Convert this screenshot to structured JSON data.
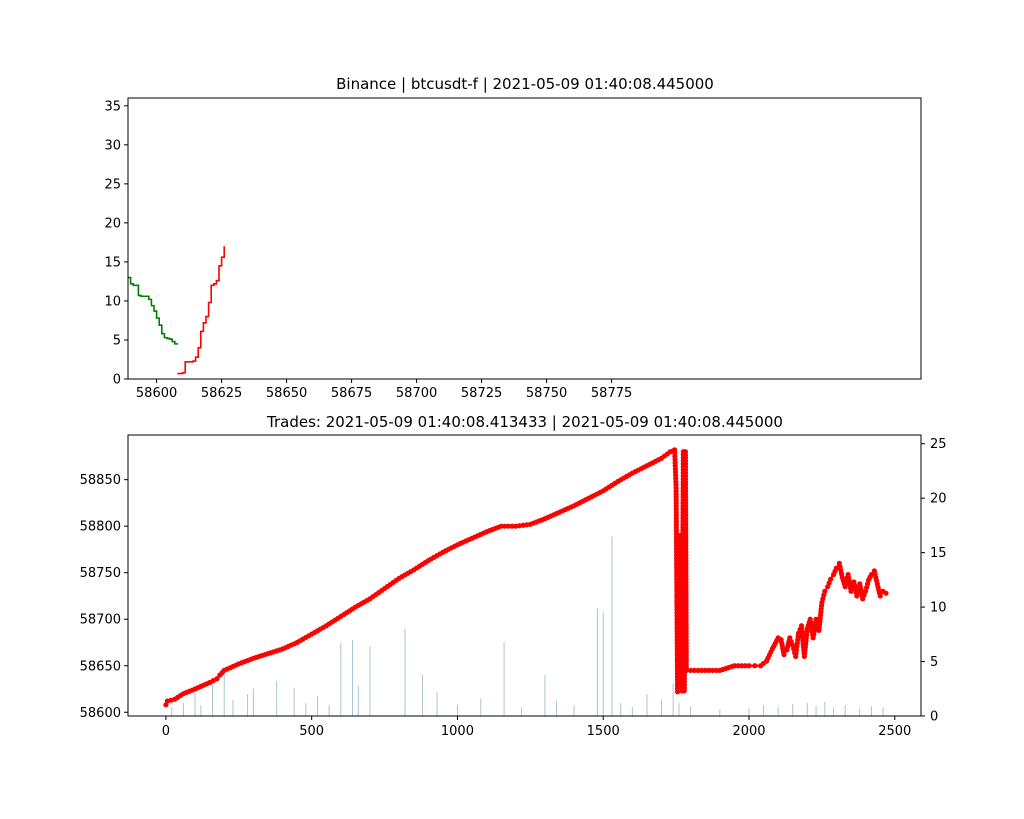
{
  "chart_data": [
    {
      "type": "line",
      "title": "Binance | btcusdt-f | 2021-05-09 01:40:08.445000",
      "xlim": [
        58589,
        58894
      ],
      "ylim": [
        0,
        36
      ],
      "xticks": [
        58600,
        58625,
        58650,
        58675,
        58700,
        58725,
        58750,
        58775
      ],
      "yticks": [
        0,
        5,
        10,
        15,
        20,
        25,
        30,
        35
      ],
      "grid": false,
      "series": [
        {
          "color": "#008000",
          "step": true,
          "x": [
            58589,
            58590,
            58591,
            58593,
            58594,
            58597,
            58598,
            58599,
            58600,
            58601,
            58602,
            58603,
            58604,
            58605,
            58606,
            58607,
            58608
          ],
          "y": [
            13.0,
            12.2,
            12.0,
            10.7,
            10.6,
            10.2,
            9.4,
            8.7,
            7.8,
            6.9,
            5.8,
            5.3,
            5.2,
            5.1,
            4.8,
            4.5,
            4.4
          ]
        },
        {
          "color": "#ff0000",
          "step": true,
          "x": [
            58608,
            58610,
            58611,
            58614,
            58615,
            58616,
            58617,
            58618,
            58619,
            58620,
            58621,
            58622,
            58623,
            58624,
            58625,
            58626
          ],
          "y": [
            0.7,
            0.8,
            2.2,
            2.3,
            2.8,
            4.0,
            6.1,
            7.2,
            8.0,
            9.8,
            12.0,
            12.2,
            12.6,
            14.5,
            15.6,
            17.0
          ]
        }
      ]
    },
    {
      "type": "line",
      "title": "Trades: 2021-05-09 01:40:08.413433 | 2021-05-09 01:40:08.445000",
      "xlim": [
        -130,
        2590
      ],
      "ylim_left": [
        58596,
        58898
      ],
      "ylim_right": [
        0,
        25.8
      ],
      "xticks": [
        0,
        500,
        1000,
        1500,
        2000,
        2500
      ],
      "yticks_left": [
        58600,
        58650,
        58700,
        58750,
        58800,
        58850
      ],
      "yticks_right": [
        0,
        5,
        10,
        15,
        20,
        25
      ],
      "grid": false,
      "price_series": {
        "color": "#ff0000",
        "marker": "dot",
        "axis": "left",
        "x": [
          0,
          5,
          30,
          60,
          100,
          150,
          175,
          185,
          200,
          250,
          300,
          350,
          400,
          450,
          500,
          550,
          600,
          650,
          700,
          750,
          800,
          850,
          900,
          950,
          1000,
          1050,
          1100,
          1150,
          1200,
          1250,
          1300,
          1350,
          1400,
          1450,
          1500,
          1550,
          1600,
          1650,
          1700,
          1730,
          1740,
          1745,
          1750,
          1755,
          1760,
          1765,
          1770,
          1775,
          1778,
          1782,
          1785,
          1800,
          1850,
          1900,
          1950,
          2000,
          2020,
          2040,
          2060,
          2080,
          2100,
          2110,
          2120,
          2130,
          2140,
          2150,
          2160,
          2170,
          2180,
          2190,
          2200,
          2210,
          2220,
          2230,
          2240,
          2250,
          2260,
          2270,
          2280,
          2290,
          2300,
          2310,
          2320,
          2330,
          2340,
          2350,
          2360,
          2370,
          2380,
          2390,
          2400,
          2410,
          2420,
          2430,
          2440,
          2450,
          2460,
          2470
        ],
        "y": [
          58608,
          58612,
          58614,
          58620,
          58625,
          58632,
          58636,
          58640,
          58645,
          58652,
          58658,
          58663,
          58668,
          58675,
          58684,
          58693,
          58703,
          58713,
          58722,
          58733,
          58744,
          58753,
          58763,
          58772,
          58780,
          58787,
          58794,
          58800,
          58800,
          58802,
          58808,
          58815,
          58822,
          58830,
          58838,
          58848,
          58857,
          58865,
          58873,
          58880,
          58881,
          58882,
          58841,
          58622,
          58790,
          58700,
          58623,
          58880,
          58623,
          58880,
          58645,
          58645,
          58645,
          58645,
          58650,
          58650,
          58650,
          58650,
          58655,
          58668,
          58680,
          58678,
          58662,
          58667,
          58680,
          58672,
          58660,
          58685,
          58693,
          58660,
          58690,
          58700,
          58680,
          58700,
          58688,
          58718,
          58730,
          58735,
          58743,
          58748,
          58755,
          58760,
          58745,
          58735,
          58748,
          58730,
          58740,
          58725,
          58738,
          58722,
          58730,
          58742,
          58748,
          58752,
          58738,
          58725,
          58730,
          58728
        ]
      },
      "volume_series": {
        "color": "#a8c6d6",
        "axis": "right",
        "x": [
          20,
          60,
          100,
          120,
          160,
          200,
          230,
          280,
          300,
          380,
          440,
          480,
          520,
          560,
          600,
          640,
          660,
          700,
          820,
          880,
          930,
          1000,
          1080,
          1160,
          1220,
          1300,
          1340,
          1400,
          1480,
          1500,
          1530,
          1560,
          1600,
          1650,
          1700,
          1740,
          1760,
          1800,
          1900,
          2000,
          2050,
          2100,
          2150,
          2200,
          2230,
          2260,
          2290,
          2330,
          2380,
          2420,
          2460
        ],
        "y": [
          0.8,
          1.2,
          2.1,
          1.0,
          3.0,
          4.0,
          1.5,
          2.0,
          2.5,
          3.2,
          2.6,
          1.2,
          1.8,
          1.0,
          6.7,
          7.0,
          2.8,
          6.4,
          8.0,
          3.8,
          2.2,
          1.0,
          1.6,
          6.8,
          0.8,
          3.8,
          1.4,
          1.0,
          9.9,
          9.5,
          16.5,
          1.2,
          0.8,
          2.0,
          1.5,
          3.0,
          1.2,
          0.9,
          0.6,
          0.7,
          1.0,
          0.8,
          1.1,
          1.2,
          0.9,
          1.3,
          0.8,
          1.0,
          0.7,
          0.9,
          0.8
        ]
      }
    }
  ]
}
